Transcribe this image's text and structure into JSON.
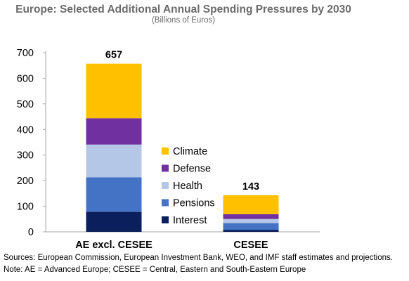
{
  "chart_data": {
    "type": "bar",
    "stacked": true,
    "title": "Europe: Selected Additional Annual Spending Pressures by 2030",
    "subtitle": "(Billions of Euros)",
    "categories": [
      "AE excl. CESEE",
      "CESEE"
    ],
    "totals": [
      "657",
      "143"
    ],
    "series": [
      {
        "name": "Interest",
        "color": "#0b1f5c",
        "values": [
          78,
          8
        ]
      },
      {
        "name": "Pensions",
        "color": "#4472c4",
        "values": [
          135,
          26
        ]
      },
      {
        "name": "Health",
        "color": "#b4c7e7",
        "values": [
          128,
          16
        ]
      },
      {
        "name": "Defense",
        "color": "#7030a0",
        "values": [
          103,
          19
        ]
      },
      {
        "name": "Climate",
        "color": "#ffc000",
        "values": [
          213,
          74
        ]
      }
    ],
    "ylim": [
      0,
      700
    ],
    "yticks": [
      0,
      100,
      200,
      300,
      400,
      500,
      600,
      700
    ],
    "grid": false,
    "legend_placement": "center",
    "legend_order": [
      "Climate",
      "Defense",
      "Health",
      "Pensions",
      "Interest"
    ]
  },
  "footnotes": {
    "sources": "Sources: European Commission, European Investment Bank, WEO, and IMF staff estimates and projections.",
    "note": "Note: AE = Advanced Europe; CESEE = Central, Eastern and South-Eastern Europe"
  }
}
